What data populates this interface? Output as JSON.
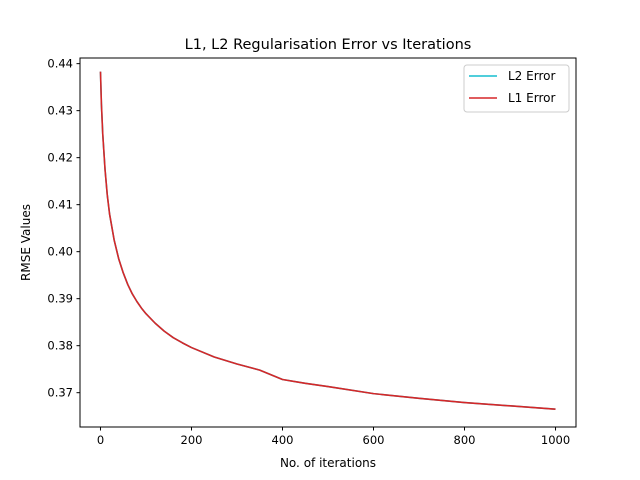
{
  "chart_data": {
    "type": "line",
    "title": "L1, L2 Regularisation Error vs Iterations",
    "xlabel": "No. of iterations",
    "ylabel": "RMSE Values",
    "xlim": [
      -45,
      1045
    ],
    "ylim": [
      0.3627,
      0.4412
    ],
    "xticks": [
      0,
      200,
      400,
      600,
      800,
      1000
    ],
    "yticks": [
      0.37,
      0.38,
      0.39,
      0.4,
      0.41,
      0.42,
      0.43,
      0.44
    ],
    "ytick_labels": [
      "0.37",
      "0.38",
      "0.39",
      "0.40",
      "0.41",
      "0.42",
      "0.43",
      "0.44"
    ],
    "grid": false,
    "legend_position": "top-right",
    "x": [
      0,
      2,
      5,
      10,
      15,
      20,
      30,
      40,
      50,
      60,
      70,
      80,
      90,
      100,
      120,
      140,
      160,
      180,
      200,
      250,
      300,
      350,
      400,
      450,
      500,
      600,
      700,
      800,
      900,
      1000
    ],
    "series": [
      {
        "name": "L2 Error",
        "color": "#17becf",
        "values": [
          0.4383,
          0.4315,
          0.425,
          0.4175,
          0.412,
          0.408,
          0.4025,
          0.3985,
          0.3955,
          0.393,
          0.391,
          0.3894,
          0.388,
          0.3868,
          0.3848,
          0.3831,
          0.3817,
          0.3806,
          0.3796,
          0.3776,
          0.3761,
          0.3748,
          0.3728,
          0.372,
          0.3713,
          0.3698,
          0.3688,
          0.3679,
          0.3672,
          0.3665
        ]
      },
      {
        "name": "L1 Error",
        "color": "#d62728",
        "values": [
          0.4383,
          0.4315,
          0.425,
          0.4175,
          0.412,
          0.408,
          0.4025,
          0.3985,
          0.3955,
          0.393,
          0.391,
          0.3894,
          0.388,
          0.3868,
          0.3848,
          0.3831,
          0.3817,
          0.3806,
          0.3796,
          0.3776,
          0.3761,
          0.3748,
          0.3728,
          0.372,
          0.3713,
          0.3698,
          0.3688,
          0.3679,
          0.3672,
          0.3665
        ]
      }
    ]
  }
}
